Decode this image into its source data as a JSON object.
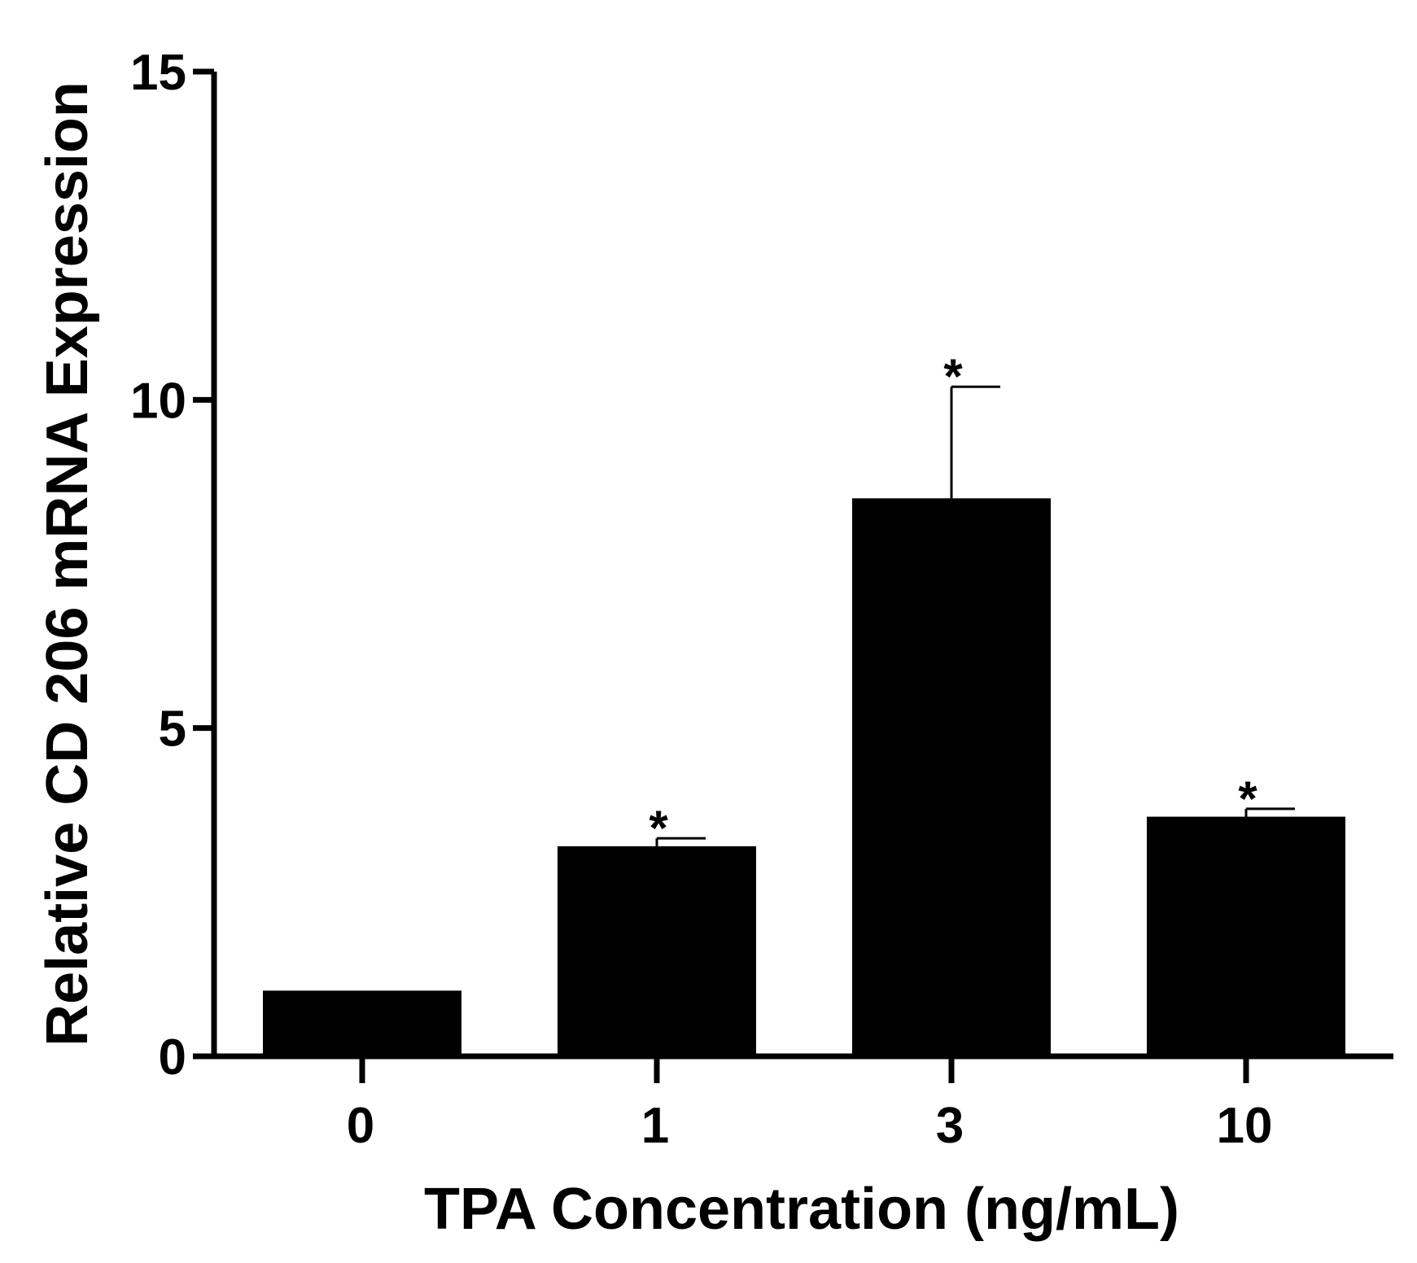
{
  "chart_data": {
    "type": "bar",
    "title": "",
    "xlabel": "TPA Concentration (ng/mL)",
    "ylabel": "Relative CD 206 mRNA Expression",
    "categories": [
      "0",
      "1",
      "3",
      "10"
    ],
    "values": [
      1.0,
      3.2,
      8.5,
      3.65
    ],
    "errors": [
      0.0,
      0.12,
      1.7,
      0.12
    ],
    "significance": [
      "",
      "*",
      "*",
      "*"
    ],
    "ylim": [
      0,
      15
    ],
    "yticks": [
      0,
      5,
      10,
      15
    ],
    "ytick_labels": [
      "0",
      "5",
      "10",
      "15"
    ],
    "grid": false,
    "legend": "none",
    "colors": {
      "bar": "#000000",
      "axis": "#000000"
    }
  }
}
